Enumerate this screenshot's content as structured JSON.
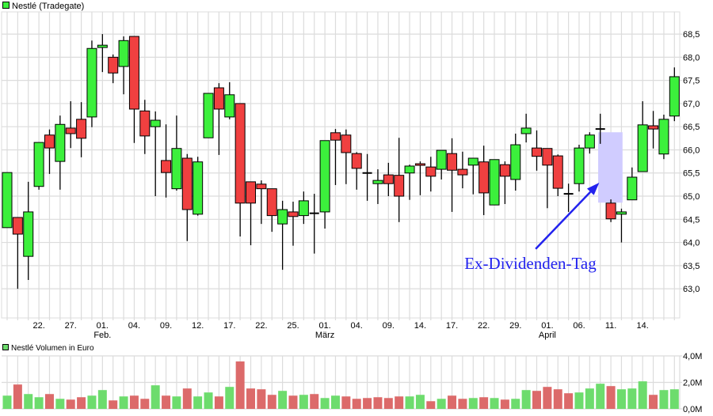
{
  "title": "Nestlé (Tradegate)",
  "volume_title": "Nestlé Volumen in Euro",
  "colors": {
    "up": "#3cf03c",
    "down": "#f04040",
    "vol_up": "#6ddc6d",
    "vol_down": "#dc6a6a",
    "grid": "#dcdcdc",
    "annotation": "#2222ee",
    "highlight": "#d0ccff"
  },
  "chart_data": [
    {
      "type": "candlestick",
      "title": "Nestlé (Tradegate)",
      "ylim": [
        62.37,
        68.98
      ],
      "yticks": [
        63.0,
        63.5,
        64.0,
        64.5,
        65.0,
        65.5,
        66.0,
        66.5,
        67.0,
        67.5,
        68.0,
        68.5
      ],
      "ytick_labels": [
        "63,0",
        "63,5",
        "64,0",
        "64,5",
        "65,0",
        "65,5",
        "66,0",
        "66,5",
        "67,0",
        "67,5",
        "68,0",
        "68,5"
      ],
      "xtick_labels": [
        {
          "i": 3,
          "day": "22.",
          "month": ""
        },
        {
          "i": 6,
          "day": "27.",
          "month": ""
        },
        {
          "i": 9,
          "day": "01.",
          "month": "Feb."
        },
        {
          "i": 12,
          "day": "04.",
          "month": ""
        },
        {
          "i": 15,
          "day": "09.",
          "month": ""
        },
        {
          "i": 18,
          "day": "12.",
          "month": ""
        },
        {
          "i": 21,
          "day": "17.",
          "month": ""
        },
        {
          "i": 24,
          "day": "22.",
          "month": ""
        },
        {
          "i": 27,
          "day": "25.",
          "month": ""
        },
        {
          "i": 30,
          "day": "01.",
          "month": "März"
        },
        {
          "i": 33,
          "day": "04.",
          "month": ""
        },
        {
          "i": 36,
          "day": "09.",
          "month": ""
        },
        {
          "i": 39,
          "day": "14.",
          "month": ""
        },
        {
          "i": 42,
          "day": "17.",
          "month": ""
        },
        {
          "i": 45,
          "day": "22.",
          "month": ""
        },
        {
          "i": 48,
          "day": "29.",
          "month": ""
        },
        {
          "i": 51,
          "day": "01.",
          "month": "April"
        },
        {
          "i": 54,
          "day": "06.",
          "month": ""
        },
        {
          "i": 57,
          "day": "11.",
          "month": ""
        },
        {
          "i": 60,
          "day": "14.",
          "month": ""
        }
      ],
      "ohlc": [
        [
          64.32,
          65.51,
          64.32,
          65.51
        ],
        [
          64.54,
          64.54,
          63.0,
          64.18
        ],
        [
          63.7,
          65.31,
          63.19,
          64.66
        ],
        [
          65.21,
          66.16,
          65.14,
          66.16
        ],
        [
          66.32,
          66.44,
          65.48,
          66.04
        ],
        [
          65.75,
          66.74,
          65.14,
          66.55
        ],
        [
          66.47,
          67.05,
          66.04,
          66.35
        ],
        [
          66.66,
          67.03,
          65.84,
          66.25
        ],
        [
          66.71,
          68.36,
          66.49,
          68.19
        ],
        [
          68.21,
          68.5,
          67.68,
          68.26
        ],
        [
          68.0,
          68.06,
          67.44,
          67.66
        ],
        [
          67.8,
          68.45,
          67.2,
          68.36
        ],
        [
          68.45,
          68.45,
          66.15,
          66.88
        ],
        [
          66.84,
          67.08,
          65.91,
          66.3
        ],
        [
          66.5,
          66.83,
          65.0,
          66.64
        ],
        [
          65.77,
          66.55,
          64.97,
          65.51
        ],
        [
          65.16,
          66.74,
          65.12,
          66.03
        ],
        [
          65.82,
          65.91,
          64.03,
          64.71
        ],
        [
          64.61,
          65.85,
          64.58,
          65.74
        ],
        [
          66.26,
          67.22,
          66.26,
          67.22
        ],
        [
          67.34,
          67.44,
          65.89,
          66.88
        ],
        [
          66.71,
          67.46,
          66.66,
          67.19
        ],
        [
          67.0,
          67.0,
          64.13,
          64.85
        ],
        [
          65.31,
          65.31,
          63.94,
          64.85
        ],
        [
          65.26,
          65.34,
          64.4,
          65.16
        ],
        [
          65.16,
          65.16,
          64.23,
          64.58
        ],
        [
          64.4,
          64.9,
          63.41,
          64.71
        ],
        [
          64.66,
          64.88,
          63.93,
          64.56
        ],
        [
          64.58,
          65.1,
          64.4,
          64.9
        ],
        [
          64.63,
          65.05,
          63.76,
          64.63
        ],
        [
          64.66,
          66.2,
          64.3,
          66.2
        ],
        [
          66.37,
          66.45,
          65.24,
          66.21
        ],
        [
          66.32,
          66.44,
          65.26,
          65.94
        ],
        [
          65.92,
          65.95,
          65.14,
          65.6
        ],
        [
          65.5,
          65.91,
          64.9,
          65.5
        ],
        [
          65.27,
          65.58,
          64.83,
          65.34
        ],
        [
          65.46,
          65.72,
          65.0,
          65.27
        ],
        [
          65.45,
          66.26,
          64.44,
          65.0
        ],
        [
          65.5,
          65.68,
          64.92,
          65.65
        ],
        [
          65.7,
          65.75,
          65.02,
          65.67
        ],
        [
          65.63,
          65.85,
          65.1,
          65.43
        ],
        [
          65.58,
          65.99,
          65.36,
          65.99
        ],
        [
          65.92,
          66.25,
          64.66,
          65.56
        ],
        [
          65.58,
          65.96,
          65.17,
          65.46
        ],
        [
          65.67,
          65.82,
          65.04,
          65.82
        ],
        [
          65.74,
          66.09,
          64.59,
          65.07
        ],
        [
          64.81,
          65.79,
          64.81,
          65.79
        ],
        [
          65.68,
          65.75,
          64.83,
          65.43
        ],
        [
          65.36,
          66.35,
          65.12,
          66.11
        ],
        [
          66.35,
          66.78,
          66.16,
          66.47
        ],
        [
          66.04,
          66.42,
          65.55,
          65.86
        ],
        [
          66.03,
          66.03,
          64.74,
          65.67
        ],
        [
          65.87,
          65.9,
          65.0,
          65.17
        ],
        [
          65.05,
          65.27,
          64.66,
          65.05
        ],
        [
          65.27,
          66.11,
          65.1,
          66.04
        ],
        [
          66.04,
          66.38,
          65.92,
          66.32
        ],
        [
          66.45,
          66.78,
          66.13,
          66.45
        ],
        [
          64.85,
          64.93,
          64.44,
          64.51
        ],
        [
          64.61,
          64.73,
          64.0,
          64.66
        ],
        [
          64.92,
          65.62,
          64.92,
          65.41
        ],
        [
          65.53,
          67.05,
          65.53,
          66.54
        ],
        [
          66.52,
          66.84,
          66.03,
          66.45
        ],
        [
          65.91,
          66.76,
          65.8,
          66.66
        ],
        [
          66.73,
          67.78,
          66.62,
          67.58
        ]
      ],
      "annotation": {
        "text": "Ex-Dividenden-Tag",
        "text_at": {
          "i": 49.4,
          "price": 63.43
        },
        "arrow_from": {
          "i": 49.9,
          "price": 63.86
        },
        "arrow_to": {
          "i": 55.9,
          "price": 65.29
        },
        "highlight": {
          "i_from": 55.8,
          "i_to": 58.1,
          "price_from": 64.86,
          "price_to": 66.38
        }
      }
    },
    {
      "type": "bar",
      "title": "Nestlé Volumen in Euro",
      "ylim": [
        0,
        4.0
      ],
      "unit": "M",
      "ytick_labels": [
        {
          "v": 0,
          "label": "0,0M"
        },
        {
          "v": 2,
          "label": "2,0M"
        },
        {
          "v": 4,
          "label": "4,0M"
        }
      ],
      "values": [
        1.0,
        1.84,
        1.12,
        0.88,
        1.12,
        0.76,
        0.7,
        0.88,
        1.0,
        1.42,
        0.64,
        0.94,
        1.0,
        0.76,
        1.78,
        1.0,
        0.94,
        1.54,
        0.94,
        1.24,
        0.94,
        1.66,
        3.58,
        1.54,
        1.48,
        1.06,
        1.36,
        1.0,
        1.06,
        1.12,
        0.82,
        1.0,
        0.94,
        0.76,
        0.82,
        0.88,
        0.82,
        0.94,
        0.94,
        1.06,
        0.58,
        0.76,
        1.0,
        0.76,
        0.82,
        0.88,
        0.82,
        0.7,
        0.76,
        1.42,
        1.36,
        1.66,
        1.48,
        1.18,
        1.24,
        1.54,
        1.9,
        1.72,
        1.48,
        1.54,
        2.08,
        1.06,
        1.42,
        1.48
      ],
      "direction": [
        "u",
        "d",
        "u",
        "u",
        "d",
        "u",
        "d",
        "d",
        "u",
        "u",
        "d",
        "u",
        "d",
        "d",
        "u",
        "d",
        "u",
        "d",
        "u",
        "u",
        "d",
        "u",
        "d",
        "d",
        "d",
        "d",
        "u",
        "d",
        "u",
        "d",
        "u",
        "u",
        "d",
        "d",
        "d",
        "d",
        "d",
        "d",
        "u",
        "u",
        "d",
        "u",
        "d",
        "d",
        "u",
        "d",
        "u",
        "d",
        "u",
        "u",
        "d",
        "d",
        "d",
        "d",
        "u",
        "u",
        "u",
        "d",
        "u",
        "u",
        "u",
        "d",
        "u",
        "u"
      ]
    }
  ]
}
